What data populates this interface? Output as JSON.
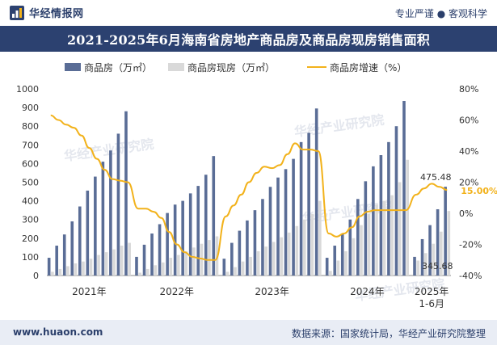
{
  "header": {
    "brand": "华经情报网",
    "tagline": "专业严谨 ● 客观科学"
  },
  "footer": {
    "website": "www.huaon.com",
    "source": "数据来源：国家统计局，华经产业研究院整理"
  },
  "watermark": {
    "text": "华经产业研究院"
  },
  "colors": {
    "title_bg": "#2c4170",
    "bar_primary": "#5a6d96",
    "bar_secondary": "#d9d9d9",
    "line": "#f2b21b",
    "highlight_label": "#f2b21b",
    "footer_bg": "#e9edf5"
  },
  "chart_data": {
    "type": "bar",
    "title": "2021-2025年6月海南省房地产商品房及商品房现房销售面积",
    "x_tick_labels": [
      "2021年",
      "2022年",
      "2023年",
      "2024年",
      "2025年\n1-6月"
    ],
    "y_left": {
      "min": 0,
      "max": 1000,
      "step": 100,
      "ticks": [
        "0",
        "100",
        "200",
        "300",
        "400",
        "500",
        "600",
        "700",
        "800",
        "900",
        "1000"
      ]
    },
    "y_right": {
      "min": -40,
      "max": 80,
      "step": 20,
      "ticks": [
        "-40%",
        "-20%",
        "0%",
        "20%",
        "40%",
        "60%",
        "80%"
      ]
    },
    "grid": false,
    "legend_position": "top",
    "series": [
      {
        "name": "商品房（万㎡）",
        "kind": "bar",
        "axis": "left",
        "color": "#5a6d96",
        "values": [
          95,
          160,
          220,
          290,
          370,
          455,
          530,
          610,
          670,
          760,
          880,
          100,
          165,
          225,
          275,
          335,
          380,
          400,
          440,
          480,
          540,
          640,
          90,
          175,
          240,
          295,
          350,
          410,
          475,
          525,
          570,
          625,
          715,
          765,
          895,
          95,
          160,
          225,
          300,
          410,
          505,
          585,
          645,
          715,
          800,
          935,
          100,
          195,
          270,
          355,
          475.48
        ]
      },
      {
        "name": "商品房现房（万㎡）",
        "kind": "bar",
        "axis": "left",
        "color": "#d9d9d9",
        "values": [
          20,
          35,
          50,
          65,
          75,
          90,
          110,
          125,
          140,
          160,
          175,
          15,
          35,
          55,
          70,
          95,
          110,
          130,
          150,
          170,
          190,
          210,
          20,
          45,
          75,
          100,
          130,
          155,
          180,
          205,
          230,
          265,
          300,
          330,
          400,
          25,
          80,
          130,
          200,
          270,
          330,
          380,
          400,
          430,
          500,
          620,
          80,
          120,
          170,
          235,
          345.68
        ]
      },
      {
        "name": "商品房增速（%）",
        "kind": "line",
        "axis": "right",
        "color": "#f2b21b",
        "values": [
          63,
          60,
          57,
          55,
          50,
          42,
          35,
          28,
          22,
          21,
          20,
          3,
          3,
          1,
          -3,
          -12,
          -20,
          -25,
          -28,
          -29,
          -30,
          -30,
          -2,
          5,
          12,
          20,
          26,
          30,
          29,
          31,
          38,
          45,
          41,
          41,
          40,
          -13,
          -15,
          -13,
          -9,
          -2,
          1,
          2,
          2,
          2,
          2,
          2,
          12,
          16,
          19,
          17,
          15.0
        ]
      }
    ],
    "annotations": [
      {
        "text": "475.48",
        "series": "商品房（万㎡）",
        "index": 50
      },
      {
        "text": "345.68",
        "series": "商品房现房（万㎡）",
        "index": 50
      },
      {
        "text": "15.00%",
        "series": "商品房增速（%）",
        "index": 50
      }
    ]
  }
}
